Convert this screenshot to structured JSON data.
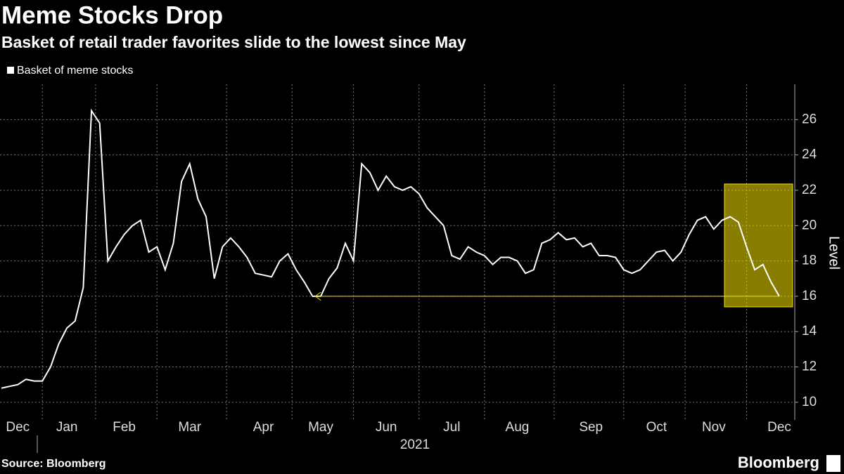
{
  "chart_data": {
    "type": "line",
    "title": "Meme Stocks Drop",
    "subtitle": "Basket of retail trader favorites slide to the lowest since May",
    "source": "Source: Bloomberg",
    "brand": "Bloomberg",
    "xlabel": "2021",
    "ylabel": "Level",
    "categories": [
      null,
      null,
      "Dec",
      null,
      null,
      null,
      null,
      null,
      "Jan",
      null,
      null,
      null,
      null,
      null,
      null,
      "Feb",
      null,
      null,
      null,
      null,
      null,
      null,
      null,
      "Mar",
      null,
      null,
      null,
      null,
      null,
      null,
      null,
      null,
      "Apr",
      null,
      null,
      null,
      null,
      null,
      null,
      "May",
      null,
      null,
      null,
      null,
      null,
      null,
      null,
      "Jun",
      null,
      null,
      null,
      null,
      null,
      null,
      null,
      "Jul",
      null,
      null,
      null,
      null,
      null,
      null,
      null,
      "Aug",
      null,
      null,
      null,
      null,
      null,
      null,
      null,
      null,
      "Sep",
      null,
      null,
      null,
      null,
      null,
      null,
      null,
      "Oct",
      null,
      null,
      null,
      null,
      null,
      null,
      "Nov",
      null,
      null,
      null,
      null,
      null,
      null,
      null,
      "Dec"
    ],
    "series": [
      {
        "name": "Basket of meme stocks",
        "color": "#ffffff",
        "values": [
          10.8,
          10.9,
          11.0,
          11.3,
          11.2,
          11.2,
          12.0,
          13.3,
          14.2,
          14.6,
          16.5,
          26.5,
          25.8,
          18.0,
          18.8,
          19.5,
          20.0,
          20.3,
          18.5,
          18.8,
          17.5,
          19.0,
          22.5,
          23.5,
          21.5,
          20.5,
          17.0,
          18.8,
          19.3,
          18.8,
          18.2,
          17.3,
          17.2,
          17.1,
          18.0,
          18.4,
          17.5,
          16.8,
          16.0,
          16.0,
          17.0,
          17.6,
          19.0,
          18.0,
          23.5,
          23.0,
          22.0,
          22.8,
          22.2,
          22.0,
          22.2,
          21.8,
          21.0,
          20.5,
          20.0,
          18.3,
          18.1,
          18.8,
          18.5,
          18.3,
          17.8,
          18.2,
          18.2,
          18.0,
          17.3,
          17.5,
          19.0,
          19.2,
          19.6,
          19.2,
          19.3,
          18.8,
          19.0,
          18.3,
          18.3,
          18.2,
          17.5,
          17.3,
          17.5,
          18.0,
          18.5,
          18.6,
          18.0,
          18.5,
          19.5,
          20.3,
          20.5,
          19.8,
          20.3,
          20.5,
          20.2,
          18.8,
          17.5,
          17.8,
          16.8,
          16.0
        ]
      }
    ],
    "ylim": [
      9,
      28
    ],
    "yticks": [
      10,
      12,
      14,
      16,
      18,
      20,
      22,
      24,
      26
    ],
    "grid": true,
    "highlight_color": "#f5e400"
  }
}
